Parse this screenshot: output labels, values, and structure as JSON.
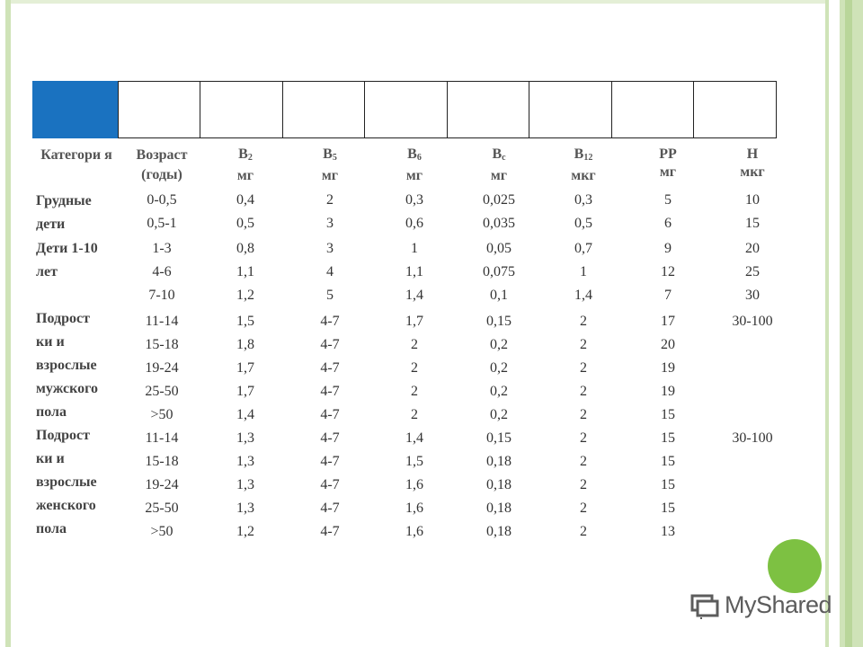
{
  "table": {
    "headers": {
      "category": "Категори я",
      "age": [
        "Возраст",
        "(годы)"
      ],
      "b2": {
        "name": "B",
        "sub": "2",
        "unit": "мг"
      },
      "b5": {
        "name": "B",
        "sub": "5",
        "unit": "мг"
      },
      "b6": {
        "name": "B",
        "sub": "6",
        "unit": "мг"
      },
      "bc": {
        "name": "B",
        "sub": "c",
        "unit": "мг"
      },
      "b12": {
        "name": "B",
        "sub": "12",
        "unit": "мкг"
      },
      "pp": {
        "name": "PP",
        "unit": "мг"
      },
      "h": {
        "name": "H",
        "unit": "мкг"
      }
    },
    "categories": {
      "infants": [
        "Грудные",
        "дети"
      ],
      "children": [
        "Дети 1-10",
        "лет"
      ],
      "males": [
        "Подрост",
        "ки и",
        "взрослые",
        "мужского",
        "пола"
      ],
      "females": [
        "Подрост",
        "ки и",
        "взрослые",
        "женского",
        "пола"
      ]
    },
    "age": [
      "0-0,5",
      "0,5-1",
      "1-3",
      "4-6",
      "7-10",
      "11-14",
      "15-18",
      "19-24",
      "25-50",
      ">50",
      "11-14",
      "15-18",
      "19-24",
      "25-50",
      ">50"
    ],
    "b2": [
      "0,4",
      "0,5",
      "0,8",
      "1,1",
      "1,2",
      "1,5",
      "1,8",
      "1,7",
      "1,7",
      "1,4",
      "1,3",
      "1,3",
      "1,3",
      "1,3",
      "1,2"
    ],
    "b5": [
      "2",
      "3",
      "3",
      "4",
      "5",
      "4-7",
      "4-7",
      "4-7",
      "4-7",
      "4-7",
      "4-7",
      "4-7",
      "4-7",
      "4-7",
      "4-7"
    ],
    "b6": [
      "0,3",
      "0,6",
      "1",
      "1,1",
      "1,4",
      "1,7",
      "2",
      "2",
      "2",
      "2",
      "1,4",
      "1,5",
      "1,6",
      "1,6",
      "1,6"
    ],
    "bc": [
      "0,025",
      "0,035",
      "0,05",
      "0,075",
      "0,1",
      "0,15",
      "0,2",
      "0,2",
      "0,2",
      "0,2",
      "0,15",
      "0,18",
      "0,18",
      "0,18",
      "0,18"
    ],
    "b12": [
      "0,3",
      "0,5",
      "0,7",
      "1",
      "1,4",
      "2",
      "2",
      "2",
      "2",
      "2",
      "2",
      "2",
      "2",
      "2",
      "2"
    ],
    "pp": [
      "5",
      "6",
      "9",
      "12",
      "7",
      "17",
      "20",
      "19",
      "19",
      "15",
      "15",
      "15",
      "15",
      "15",
      "13"
    ],
    "h": [
      "10",
      "15",
      "20",
      "25",
      "30",
      "30-100",
      "",
      "",
      "",
      "",
      "30-100",
      "",
      "",
      "",
      ""
    ]
  },
  "logo": {
    "text": "MyShared"
  },
  "colors": {
    "accent_blue": "#1a72c0",
    "frame_green": "#cfe3b8",
    "dot_green": "#7dc142"
  }
}
